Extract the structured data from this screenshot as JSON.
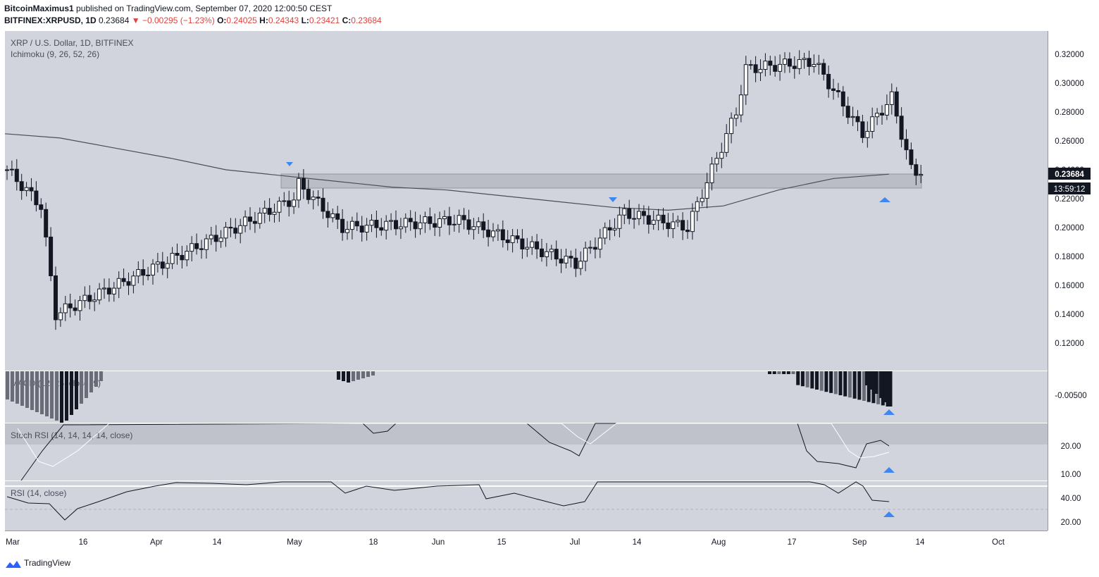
{
  "header": {
    "line1_user": "BitcoinMaximus1",
    "line1_rest": " published on TradingView.com, September 07, 2020 12:00:50 CEST",
    "symbol": "BITFINEX:XRPUSD, 1D",
    "last": "0.23684",
    "change": "▼ −0.00295 (−1.23%)",
    "o_label": "O:",
    "o": "0.24025",
    "h_label": "H:",
    "h": "0.24343",
    "l_label": "L:",
    "l": "0.23421",
    "c_label": "C:",
    "c": "0.23684"
  },
  "chart_data": [
    {
      "type": "candlestick",
      "title": "XRP / U.S. Dollar, 1D, BITFINEX",
      "indicator": "Ichimoku (9, 26, 52, 26)",
      "ylim": [
        0.1,
        0.33
      ],
      "ticks": [
        "0.32000",
        "0.30000",
        "0.28000",
        "0.26000",
        "0.24000",
        "0.22000",
        "0.20000",
        "0.18000",
        "0.16000",
        "0.14000",
        "0.12000"
      ],
      "x_labels": [
        "Mar",
        "16",
        "Apr",
        "14",
        "May",
        "18",
        "Jun",
        "15",
        "Jul",
        "14",
        "Aug",
        "17",
        "Sep",
        "14",
        "Oct"
      ],
      "last_price": "0.23684",
      "countdown": "13:59:12",
      "support_zone": [
        0.228,
        0.238
      ],
      "key_points": [
        {
          "x": "Mar 1",
          "y": 0.24
        },
        {
          "x": "Mar 9",
          "y": 0.215
        },
        {
          "x": "Mar 12",
          "y": 0.14
        },
        {
          "x": "Apr 6",
          "y": 0.18
        },
        {
          "x": "Apr 30",
          "y": 0.22
        },
        {
          "x": "May 1",
          "y": 0.23
        },
        {
          "x": "May 10",
          "y": 0.2
        },
        {
          "x": "Jun 3",
          "y": 0.205
        },
        {
          "x": "Jun 27",
          "y": 0.175
        },
        {
          "x": "Jul 8",
          "y": 0.21
        },
        {
          "x": "Jul 21",
          "y": 0.2
        },
        {
          "x": "Jul 31",
          "y": 0.28
        },
        {
          "x": "Aug 2",
          "y": 0.31
        },
        {
          "x": "Aug 16",
          "y": 0.315
        },
        {
          "x": "Aug 26",
          "y": 0.265
        },
        {
          "x": "Sep 1",
          "y": 0.29
        },
        {
          "x": "Sep 5",
          "y": 0.24
        },
        {
          "x": "Sep 7",
          "y": 0.2368
        }
      ],
      "ma_line": [
        0.265,
        0.262,
        0.255,
        0.248,
        0.24,
        0.236,
        0.232,
        0.228,
        0.226,
        0.222,
        0.218,
        0.214,
        0.212,
        0.215,
        0.226,
        0.234,
        0.237
      ]
    },
    {
      "type": "bar",
      "title": "MACD (12, 26, close, 9)",
      "ticks": [
        "-0.00500"
      ]
    },
    {
      "type": "line",
      "title": "Stoch RSI (14, 14, 14, 14, close)",
      "ticks": [
        "20.00",
        "10.00"
      ]
    },
    {
      "type": "line",
      "title": "RSI (14, close)",
      "ticks": [
        "40.00",
        "20.00"
      ]
    }
  ],
  "footer": {
    "brand": "TradingView"
  },
  "colors": {
    "pane_bg": "#d1d4dc",
    "up": "#ffffff",
    "down": "#131722",
    "marker": "#3f86f0",
    "zone": "#b2b5be"
  }
}
